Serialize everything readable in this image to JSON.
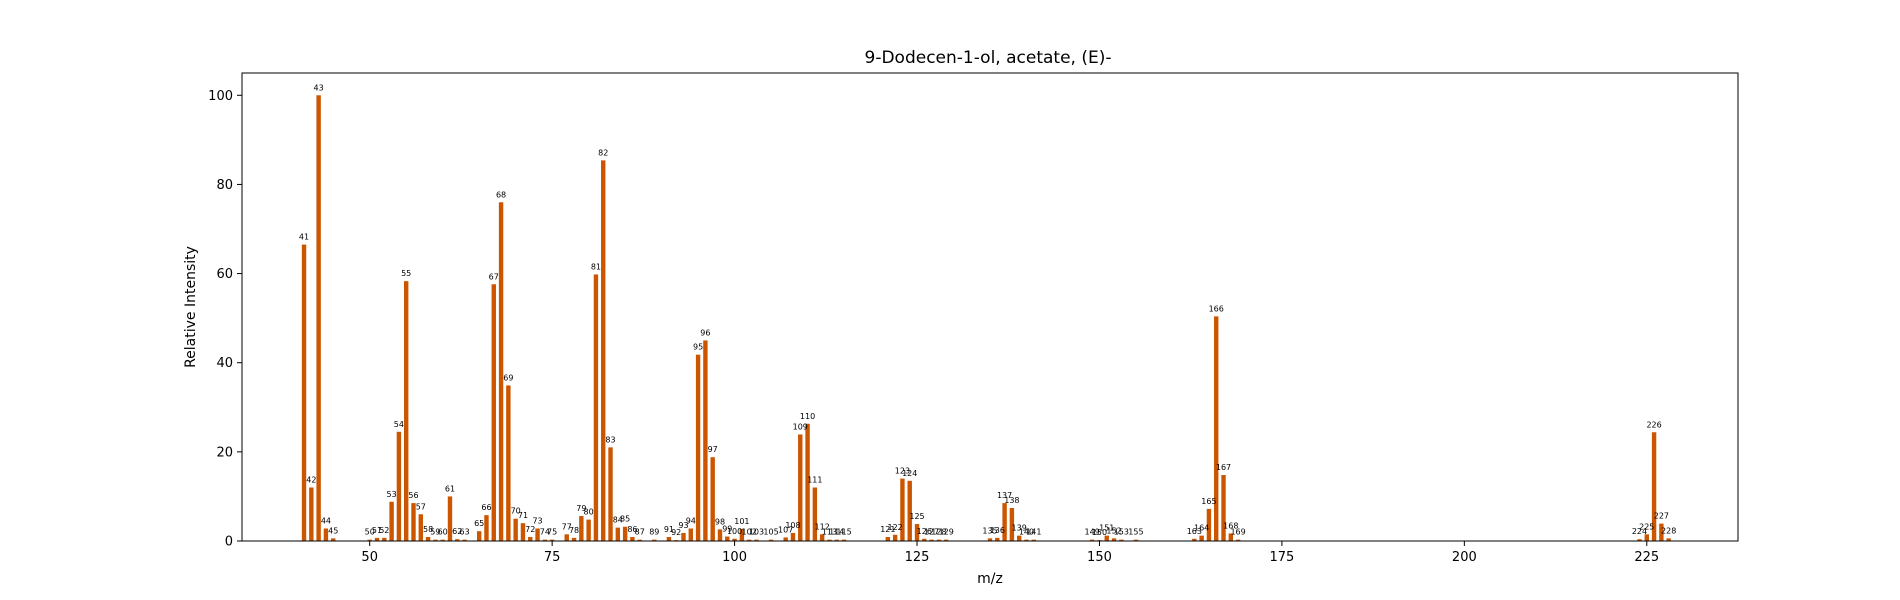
{
  "chart_data": {
    "type": "bar",
    "title": "9-Dodecen-1-ol, acetate, (E)-",
    "xlabel": "m/z",
    "ylabel": "Relative Intensity",
    "xlim": [
      32.5,
      237.5
    ],
    "ylim": [
      0,
      105
    ],
    "xticks": [
      50,
      75,
      100,
      125,
      150,
      175,
      200,
      225
    ],
    "yticks": [
      0,
      20,
      40,
      60,
      80,
      100
    ],
    "grid": false,
    "bar_color": "#cc5500",
    "points": [
      {
        "x": 41,
        "y": 66.5
      },
      {
        "x": 42,
        "y": 12.0
      },
      {
        "x": 43,
        "y": 100.0
      },
      {
        "x": 44,
        "y": 2.8
      },
      {
        "x": 45,
        "y": 0.6
      },
      {
        "x": 50,
        "y": 0.3
      },
      {
        "x": 51,
        "y": 0.7
      },
      {
        "x": 52,
        "y": 0.7
      },
      {
        "x": 53,
        "y": 8.8
      },
      {
        "x": 54,
        "y": 24.5
      },
      {
        "x": 55,
        "y": 58.3
      },
      {
        "x": 56,
        "y": 8.5
      },
      {
        "x": 57,
        "y": 6.0
      },
      {
        "x": 58,
        "y": 0.9
      },
      {
        "x": 59,
        "y": 0.3
      },
      {
        "x": 60,
        "y": 0.3
      },
      {
        "x": 61,
        "y": 10.0
      },
      {
        "x": 62,
        "y": 0.4
      },
      {
        "x": 63,
        "y": 0.3
      },
      {
        "x": 65,
        "y": 2.2
      },
      {
        "x": 66,
        "y": 5.8
      },
      {
        "x": 67,
        "y": 57.6
      },
      {
        "x": 68,
        "y": 76.0
      },
      {
        "x": 69,
        "y": 34.9
      },
      {
        "x": 70,
        "y": 5.0
      },
      {
        "x": 71,
        "y": 4.0
      },
      {
        "x": 72,
        "y": 0.9
      },
      {
        "x": 73,
        "y": 2.8
      },
      {
        "x": 74,
        "y": 0.3
      },
      {
        "x": 75,
        "y": 0.3
      },
      {
        "x": 77,
        "y": 1.5
      },
      {
        "x": 78,
        "y": 0.7
      },
      {
        "x": 79,
        "y": 5.6
      },
      {
        "x": 80,
        "y": 4.8
      },
      {
        "x": 81,
        "y": 59.8
      },
      {
        "x": 82,
        "y": 85.4
      },
      {
        "x": 83,
        "y": 21.0
      },
      {
        "x": 84,
        "y": 3.0
      },
      {
        "x": 85,
        "y": 3.2
      },
      {
        "x": 86,
        "y": 0.9
      },
      {
        "x": 87,
        "y": 0.3
      },
      {
        "x": 89,
        "y": 0.3
      },
      {
        "x": 91,
        "y": 0.9
      },
      {
        "x": 92,
        "y": 0.2
      },
      {
        "x": 93,
        "y": 1.8
      },
      {
        "x": 94,
        "y": 2.8
      },
      {
        "x": 95,
        "y": 41.8
      },
      {
        "x": 96,
        "y": 45.0
      },
      {
        "x": 97,
        "y": 18.8
      },
      {
        "x": 98,
        "y": 2.6
      },
      {
        "x": 99,
        "y": 1.0
      },
      {
        "x": 100,
        "y": 0.5
      },
      {
        "x": 101,
        "y": 2.7
      },
      {
        "x": 102,
        "y": 0.3
      },
      {
        "x": 103,
        "y": 0.3
      },
      {
        "x": 105,
        "y": 0.3
      },
      {
        "x": 107,
        "y": 0.8
      },
      {
        "x": 108,
        "y": 1.8
      },
      {
        "x": 109,
        "y": 23.9
      },
      {
        "x": 110,
        "y": 26.3
      },
      {
        "x": 111,
        "y": 12.0
      },
      {
        "x": 112,
        "y": 1.5
      },
      {
        "x": 113,
        "y": 0.3
      },
      {
        "x": 114,
        "y": 0.3
      },
      {
        "x": 115,
        "y": 0.3
      },
      {
        "x": 121,
        "y": 0.9
      },
      {
        "x": 122,
        "y": 1.4
      },
      {
        "x": 123,
        "y": 14.0
      },
      {
        "x": 124,
        "y": 13.5
      },
      {
        "x": 125,
        "y": 3.8
      },
      {
        "x": 126,
        "y": 0.5
      },
      {
        "x": 127,
        "y": 0.3
      },
      {
        "x": 128,
        "y": 0.3
      },
      {
        "x": 129,
        "y": 0.3
      },
      {
        "x": 135,
        "y": 0.6
      },
      {
        "x": 136,
        "y": 0.7
      },
      {
        "x": 137,
        "y": 8.5
      },
      {
        "x": 138,
        "y": 7.4
      },
      {
        "x": 139,
        "y": 1.2
      },
      {
        "x": 140,
        "y": 0.3
      },
      {
        "x": 141,
        "y": 0.3
      },
      {
        "x": 149,
        "y": 0.3
      },
      {
        "x": 150,
        "y": 0.2
      },
      {
        "x": 151,
        "y": 1.2
      },
      {
        "x": 152,
        "y": 0.6
      },
      {
        "x": 153,
        "y": 0.3
      },
      {
        "x": 155,
        "y": 0.3
      },
      {
        "x": 163,
        "y": 0.5
      },
      {
        "x": 164,
        "y": 1.2
      },
      {
        "x": 165,
        "y": 7.2
      },
      {
        "x": 166,
        "y": 50.4
      },
      {
        "x": 167,
        "y": 14.8
      },
      {
        "x": 168,
        "y": 1.7
      },
      {
        "x": 169,
        "y": 0.3
      },
      {
        "x": 224,
        "y": 0.4
      },
      {
        "x": 225,
        "y": 1.5
      },
      {
        "x": 226,
        "y": 24.4
      },
      {
        "x": 227,
        "y": 3.9
      },
      {
        "x": 228,
        "y": 0.6
      }
    ]
  }
}
